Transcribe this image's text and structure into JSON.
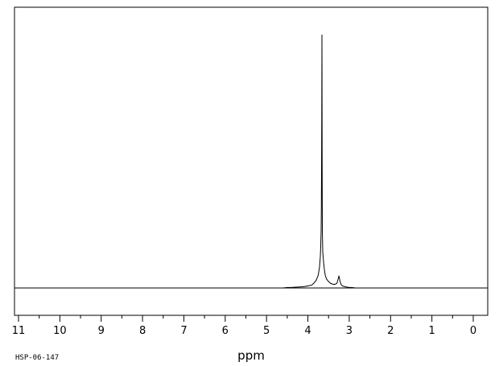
{
  "chart_data": {
    "type": "line",
    "title": "",
    "xlabel": "ppm",
    "ylabel": "",
    "x_reversed": true,
    "xlim": [
      11,
      0
    ],
    "ylim": [
      0,
      1
    ],
    "grid": false,
    "x_major_ticks": [
      11,
      10,
      9,
      8,
      7,
      6,
      5,
      4,
      3,
      2,
      1,
      0
    ],
    "x_tick_labels": [
      "11",
      "10",
      "9",
      "8",
      "7",
      "6",
      "5",
      "4",
      "3",
      "2",
      "1",
      "0"
    ],
    "baseline": 0.0,
    "spectrum_id": "HSP-06-147",
    "colors": {
      "line": "#000000",
      "frame": "#000000",
      "background": "#ffffff"
    },
    "series": [
      {
        "x": [
          11.0,
          4.6,
          4.5,
          4.4,
          4.3,
          4.2,
          4.1,
          4.0,
          3.9,
          3.85,
          3.8,
          3.75,
          3.72,
          3.7,
          3.69,
          3.68,
          3.675,
          3.67,
          3.665,
          3.66,
          3.655,
          3.65,
          3.64,
          3.62,
          3.6,
          3.58,
          3.55,
          3.5,
          3.45,
          3.4,
          3.35,
          3.3,
          3.28,
          3.26,
          3.25,
          3.24,
          3.23,
          3.22,
          3.2,
          3.18,
          3.15,
          3.1,
          3.05,
          3.0,
          2.95,
          2.9,
          2.85,
          2.8,
          0.0
        ],
        "y": [
          0.0,
          0.0,
          0.002,
          0.002,
          0.003,
          0.004,
          0.005,
          0.008,
          0.012,
          0.02,
          0.03,
          0.05,
          0.08,
          0.12,
          0.16,
          0.22,
          0.3,
          0.45,
          0.66,
          0.99,
          0.48,
          0.22,
          0.14,
          0.1,
          0.07,
          0.05,
          0.035,
          0.025,
          0.018,
          0.015,
          0.014,
          0.018,
          0.028,
          0.04,
          0.046,
          0.042,
          0.032,
          0.024,
          0.015,
          0.01,
          0.007,
          0.005,
          0.003,
          0.002,
          0.002,
          0.001,
          0.0,
          0.0,
          0.0
        ]
      }
    ]
  }
}
